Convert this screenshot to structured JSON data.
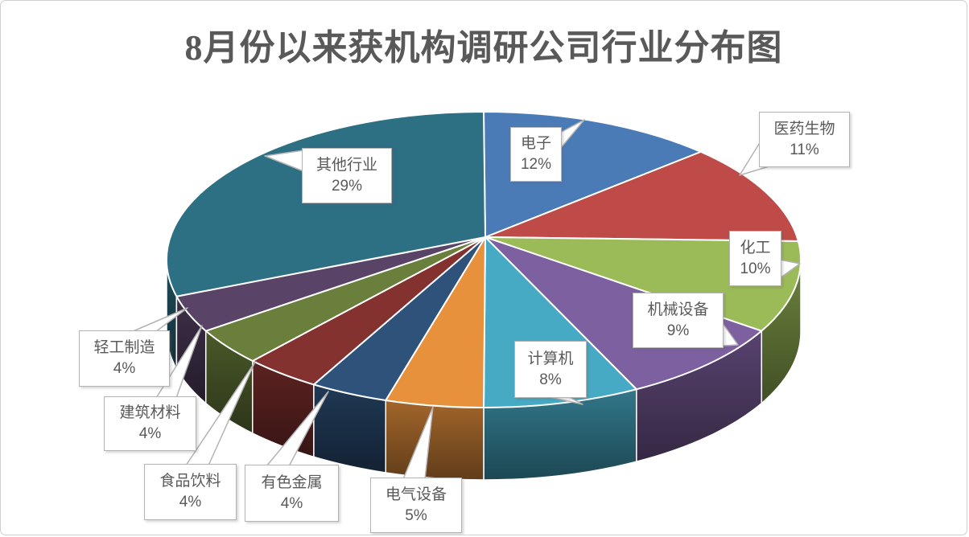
{
  "title": "8月份以来获机构调研公司行业分布图",
  "title_color": "#595959",
  "label_color": "#595959",
  "callout_border_color": "#b3b3b3",
  "chart_data": {
    "type": "pie",
    "style": "3d-pie",
    "title": "8月份以来获机构调研公司行业分布图",
    "legend_position": "none",
    "labels_as": "callouts",
    "start_angle_deg": 0,
    "direction": "clockwise",
    "slices": [
      {
        "label": "电子",
        "value": 12,
        "pct": "12%",
        "color": "#4A7BB7"
      },
      {
        "label": "医药生物",
        "value": 11,
        "pct": "11%",
        "color": "#BE4B48"
      },
      {
        "label": "化工",
        "value": 10,
        "pct": "10%",
        "color": "#9BBB59"
      },
      {
        "label": "机械设备",
        "value": 9,
        "pct": "9%",
        "color": "#7D60A0"
      },
      {
        "label": "计算机",
        "value": 8,
        "pct": "8%",
        "color": "#46AAC5"
      },
      {
        "label": "电气设备",
        "value": 5,
        "pct": "5%",
        "color": "#E8913D"
      },
      {
        "label": "有色金属",
        "value": 4,
        "pct": "4%",
        "color": "#2E527A"
      },
      {
        "label": "食品饮料",
        "value": 4,
        "pct": "4%",
        "color": "#84322F"
      },
      {
        "label": "建筑材料",
        "value": 4,
        "pct": "4%",
        "color": "#6A7F3C"
      },
      {
        "label": "轻工制造",
        "value": 4,
        "pct": "4%",
        "color": "#594367"
      },
      {
        "label": "其他行业",
        "value": 29,
        "pct": "29%",
        "color": "#2D6F83"
      }
    ]
  }
}
